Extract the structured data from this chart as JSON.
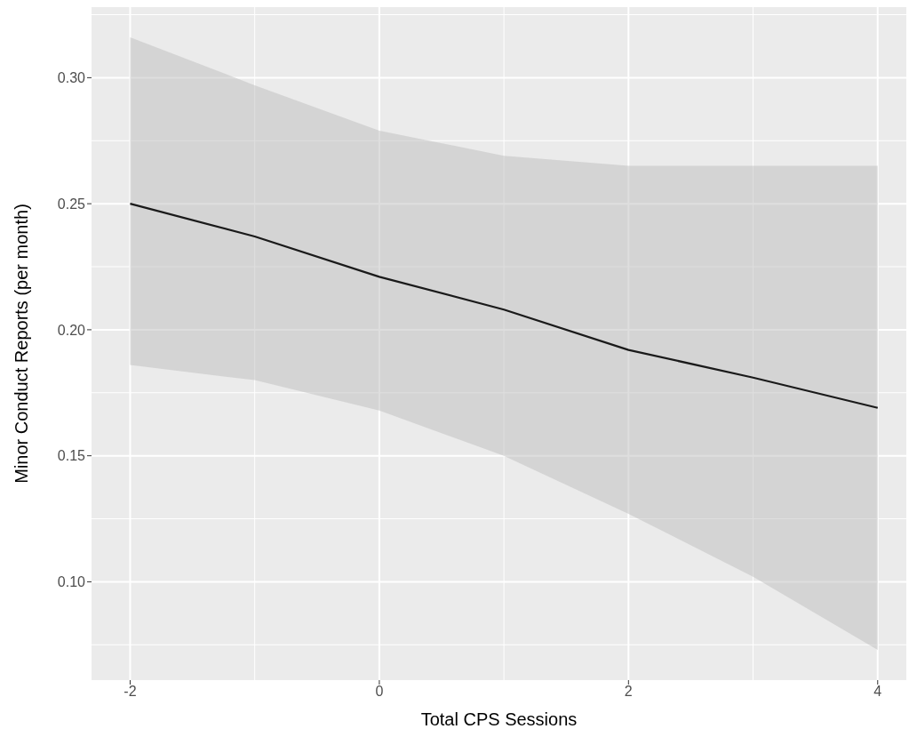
{
  "chart_data": {
    "type": "line",
    "xlabel": "Total CPS Sessions",
    "ylabel": "Minor Conduct Reports (per month)",
    "x": [
      -2,
      -1,
      0,
      1,
      2,
      3,
      4
    ],
    "series": [
      {
        "color": "#1a1a1a",
        "values": [
          0.25,
          0.237,
          0.221,
          0.208,
          0.192,
          0.181,
          0.169
        ],
        "lower": [
          0.186,
          0.18,
          0.168,
          0.15,
          0.127,
          0.102,
          0.073
        ],
        "upper": [
          0.316,
          0.297,
          0.279,
          0.269,
          0.265,
          0.265,
          0.265
        ]
      }
    ],
    "xlim": [
      -2.31,
      4.23
    ],
    "ylim": [
      0.061,
      0.328
    ],
    "xticks": [
      -2,
      0,
      2,
      4
    ],
    "yticks": [
      {
        "value": 0.1,
        "label": "0.10"
      },
      {
        "value": 0.15,
        "label": "0.15"
      },
      {
        "value": 0.2,
        "label": "0.20"
      },
      {
        "value": 0.25,
        "label": "0.25"
      },
      {
        "value": 0.3,
        "label": "0.30"
      }
    ],
    "grid": true,
    "marker": "none",
    "line_style": "solid"
  }
}
